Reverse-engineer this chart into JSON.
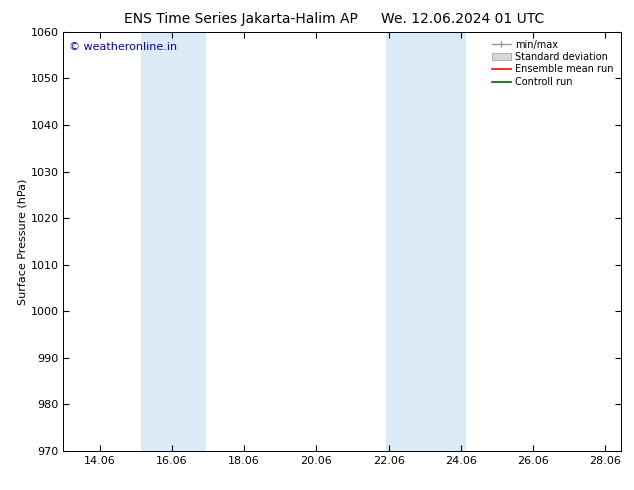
{
  "title_left": "ENS Time Series Jakarta-Halim AP",
  "title_right": "We. 12.06.2024 01 UTC",
  "ylabel": "Surface Pressure (hPa)",
  "ylim": [
    970,
    1060
  ],
  "yticks": [
    970,
    980,
    990,
    1000,
    1010,
    1020,
    1030,
    1040,
    1050,
    1060
  ],
  "xlim_start": 13.06,
  "xlim_end": 28.5,
  "xtick_positions": [
    14.06,
    16.06,
    18.06,
    20.06,
    22.06,
    24.06,
    26.06,
    28.06
  ],
  "xtick_labels": [
    "14.06",
    "16.06",
    "18.06",
    "20.06",
    "22.06",
    "24.06",
    "26.06",
    "28.06"
  ],
  "shaded_bands": [
    {
      "xmin": 15.2,
      "xmax": 17.0
    },
    {
      "xmin": 22.0,
      "xmax": 24.2
    }
  ],
  "band_color": "#daeaf7",
  "watermark_text": "© weatheronline.in",
  "watermark_color": "#0000bb",
  "legend_entries": [
    {
      "label": "min/max",
      "color": "#999999",
      "type": "minmax"
    },
    {
      "label": "Standard deviation",
      "color": "#cccccc",
      "type": "band"
    },
    {
      "label": "Ensemble mean run",
      "color": "#ff0000",
      "type": "line"
    },
    {
      "label": "Controll run",
      "color": "#006600",
      "type": "line"
    }
  ],
  "bg_color": "#ffffff",
  "title_fontsize": 10,
  "ylabel_fontsize": 8,
  "tick_fontsize": 8,
  "legend_fontsize": 7,
  "watermark_fontsize": 8
}
